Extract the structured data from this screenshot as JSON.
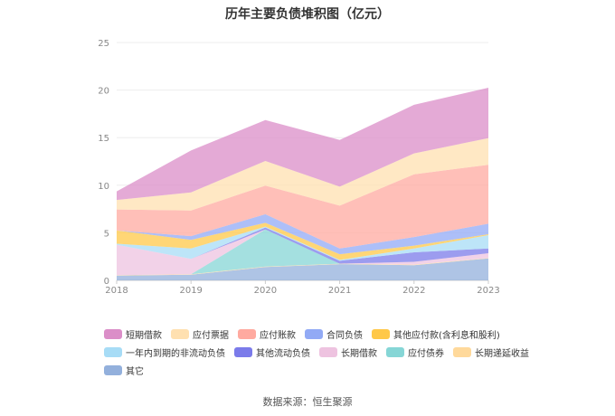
{
  "chart_data": {
    "type": "area",
    "stacked": true,
    "title": "历年主要负债堆积图（亿元）",
    "xlabel": "",
    "ylabel": "",
    "ylim": [
      0,
      25
    ],
    "yticks": [
      0,
      5,
      10,
      15,
      20,
      25
    ],
    "categories": [
      "2018",
      "2019",
      "2020",
      "2021",
      "2022",
      "2023"
    ],
    "grid": true,
    "legend_position": "bottom",
    "series": [
      {
        "name": "其它",
        "color": "#93b0dc",
        "values": [
          0.5,
          0.6,
          1.4,
          1.7,
          1.6,
          2.3
        ]
      },
      {
        "name": "长期递延收益",
        "color": "#ffd99b",
        "values": [
          0.05,
          0.05,
          0.05,
          0.05,
          0.05,
          0.05
        ]
      },
      {
        "name": "应付债券",
        "color": "#86d6d6",
        "values": [
          0.0,
          0.0,
          3.9,
          0.0,
          0.0,
          0.0
        ]
      },
      {
        "name": "长期借款",
        "color": "#eec3e0",
        "values": [
          3.2,
          1.6,
          0.0,
          0.0,
          0.3,
          0.5
        ]
      },
      {
        "name": "其他流动负债",
        "color": "#7b7bea",
        "values": [
          0.0,
          0.0,
          0.2,
          0.3,
          1.0,
          0.5
        ]
      },
      {
        "name": "一年内到期的非流动负债",
        "color": "#a7dcf6",
        "values": [
          0.1,
          1.1,
          0.1,
          0.1,
          0.4,
          1.4
        ]
      },
      {
        "name": "其他应付款(含利息和股利)",
        "color": "#ffc848",
        "values": [
          1.4,
          0.9,
          0.4,
          0.6,
          0.3,
          0.1
        ]
      },
      {
        "name": "合同负债",
        "color": "#92aaf5",
        "values": [
          0.0,
          0.4,
          0.9,
          0.6,
          0.9,
          1.1
        ]
      },
      {
        "name": "应付账款",
        "color": "#ffaaa0",
        "values": [
          2.2,
          2.7,
          3.0,
          4.5,
          6.6,
          6.2
        ]
      },
      {
        "name": "应付票据",
        "color": "#ffe0b0",
        "values": [
          1.0,
          1.9,
          2.6,
          2.0,
          2.2,
          2.8
        ]
      },
      {
        "name": "短期借款",
        "color": "#db8ec8",
        "values": [
          0.9,
          4.4,
          4.3,
          4.9,
          5.1,
          5.3
        ]
      }
    ],
    "legend_order": [
      "短期借款",
      "应付票据",
      "应付账款",
      "合同负债",
      "其他应付款(含利息和股利)",
      "一年内到期的非流动负债",
      "其他流动负债",
      "长期借款",
      "应付债券",
      "长期递延收益",
      "其它"
    ]
  },
  "source_text": "数据来源：恒生聚源"
}
